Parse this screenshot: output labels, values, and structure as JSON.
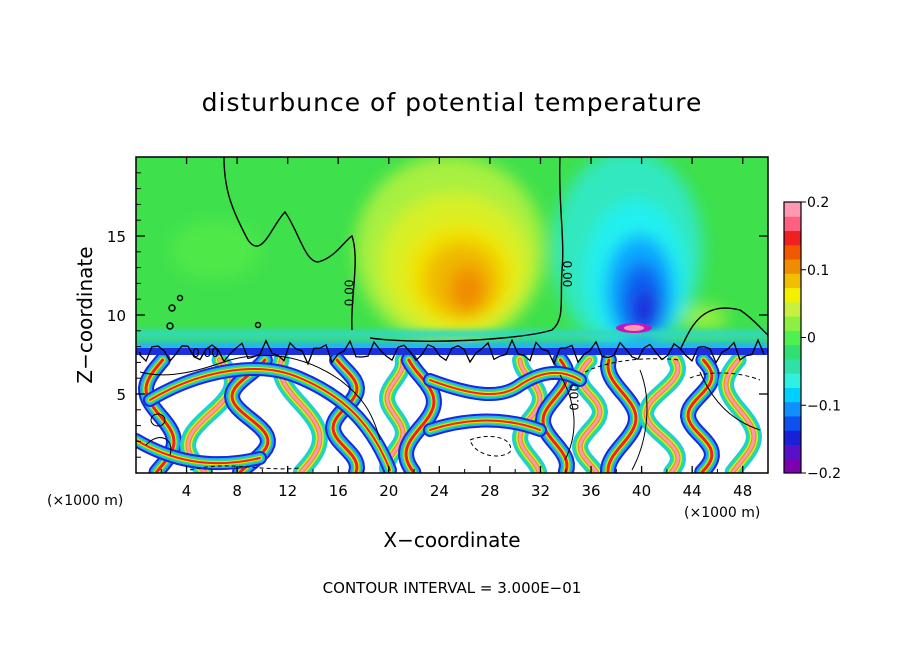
{
  "chart_data": {
    "type": "heatmap",
    "title": "disturbunce of potential temperature",
    "xlabel": "X−coordinate",
    "ylabel": "Z−coordinate",
    "x_unit_left": "(×1000 m)",
    "x_unit_right": "(×1000 m)",
    "footer": "CONTOUR INTERVAL = 3.000E−01",
    "x_ticks": [
      "4",
      "8",
      "12",
      "16",
      "20",
      "24",
      "28",
      "32",
      "36",
      "40",
      "44",
      "48"
    ],
    "y_ticks": [
      "5",
      "10",
      "15"
    ],
    "xlim": [
      0,
      50
    ],
    "ylim": [
      0,
      20
    ],
    "colorbar": {
      "range": [
        -0.2,
        0.2
      ],
      "tick_labels": [
        "0.2",
        "0.1",
        "0",
        "−0.1",
        "−0.2"
      ],
      "colors": [
        "#7a00b0",
        "#5a10c8",
        "#1a20d8",
        "#1050f0",
        "#1090ff",
        "#00d0ff",
        "#30f0e0",
        "#30e0a8",
        "#30e070",
        "#50f050",
        "#8cf040",
        "#c8f040",
        "#f0f000",
        "#f0c000",
        "#f08c00",
        "#f05800",
        "#f02020",
        "#ff6080",
        "#ff98b0"
      ]
    },
    "contour_labels": [
      {
        "text": "0.00",
        "x": 17.2,
        "y": 11.4,
        "rotate": -90
      },
      {
        "text": "0.00",
        "x": 33.8,
        "y": 12.6,
        "rotate": 90
      },
      {
        "text": "0.00",
        "x": 5.5,
        "y": 7.35,
        "rotate": 0
      },
      {
        "text": "0.00",
        "x": 35.0,
        "y": 4.8,
        "rotate": -90
      }
    ],
    "features": {
      "warm_core": {
        "x": 26,
        "y": 12.5,
        "peak": 0.12
      },
      "cold_core": {
        "x": 40,
        "y": 10.2,
        "peak": -0.2
      },
      "tropopause_z": 7.5
    }
  }
}
